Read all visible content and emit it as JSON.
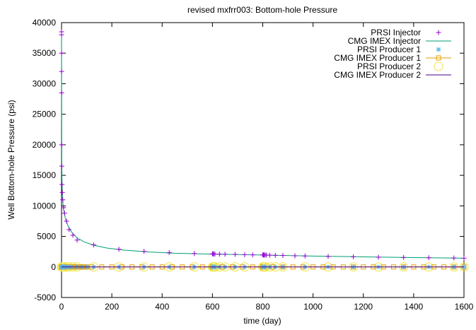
{
  "chart_data": {
    "type": "line",
    "title": "revised mxfrr003: Bottom-hole Pressure",
    "xlabel": "time (day)",
    "ylabel": "Well Bottom-hole Pressure (psi)",
    "xlim": [
      0,
      1600
    ],
    "ylim": [
      -5000,
      40000
    ],
    "xticks": [
      0,
      200,
      400,
      600,
      800,
      1000,
      1200,
      1400,
      1600
    ],
    "yticks": [
      -5000,
      0,
      5000,
      10000,
      15000,
      20000,
      25000,
      30000,
      35000,
      40000
    ],
    "grid": false,
    "legend_position": "top-right",
    "series": [
      {
        "name": "PRSI Injector",
        "style": "points",
        "marker": "plus",
        "color": "#9400d3",
        "x": [
          0.05,
          0.1,
          0.2,
          0.3,
          0.5,
          0.8,
          1,
          2,
          3,
          5,
          8,
          12,
          20,
          30,
          45,
          62,
          128,
          228,
          328,
          428,
          528,
          600,
          602,
          605,
          610,
          628,
          650,
          690,
          728,
          760,
          800,
          803,
          806,
          810,
          815,
          828,
          850,
          880,
          928,
          968,
          1060,
          1160,
          1260,
          1360,
          1460,
          1560,
          1600
        ],
        "y": [
          38500,
          38000,
          35000,
          32000,
          28500,
          20000,
          16500,
          13500,
          12200,
          11000,
          9700,
          8800,
          7500,
          6100,
          5200,
          4400,
          3600,
          2900,
          2550,
          2350,
          2200,
          2150,
          2140,
          2130,
          2120,
          2100,
          2090,
          2050,
          2000,
          1980,
          1970,
          1965,
          1960,
          1955,
          1950,
          1930,
          1900,
          1880,
          1820,
          1800,
          1720,
          1660,
          1600,
          1550,
          1500,
          1460,
          1440
        ]
      },
      {
        "name": "CMG IMEX Injector",
        "style": "line",
        "color": "#009e73",
        "x": [
          0.05,
          0.3,
          1,
          2,
          4,
          8,
          15,
          25,
          40,
          60,
          90,
          130,
          180,
          250,
          350,
          450,
          600,
          800,
          1000,
          1200,
          1400,
          1600
        ],
        "y": [
          38500,
          30000,
          17000,
          13800,
          11200,
          9500,
          8000,
          6800,
          5700,
          4800,
          4100,
          3550,
          3100,
          2750,
          2450,
          2250,
          2100,
          1950,
          1780,
          1650,
          1530,
          1430
        ]
      },
      {
        "name": "PRSI Producer 1",
        "style": "points",
        "marker": "star",
        "color": "#56b4e9",
        "x": [
          0,
          1,
          2,
          4,
          6,
          8,
          10,
          15,
          20,
          30,
          40,
          60,
          80,
          100,
          128,
          228,
          328,
          428,
          528,
          600,
          605,
          610,
          628,
          650,
          690,
          728,
          800,
          805,
          810,
          828,
          850,
          880,
          968,
          1060,
          1160,
          1260,
          1360,
          1460,
          1560,
          1600
        ],
        "y": [
          0,
          0,
          0,
          0,
          0,
          0,
          0,
          0,
          0,
          0,
          0,
          0,
          0,
          0,
          0,
          0,
          0,
          0,
          0,
          0,
          0,
          0,
          0,
          0,
          0,
          0,
          0,
          0,
          0,
          0,
          0,
          0,
          0,
          0,
          0,
          0,
          0,
          0,
          0,
          0
        ]
      },
      {
        "name": "CMG IMEX Producer 1",
        "style": "linespoints",
        "marker": "square",
        "color": "#e69f00",
        "x": [
          0,
          3,
          6,
          9,
          12,
          16,
          20,
          25,
          30,
          35,
          40,
          45,
          50,
          55,
          60,
          65,
          70,
          75,
          80,
          85,
          90,
          95,
          100,
          120,
          160,
          200,
          240,
          280,
          320,
          360,
          400,
          440,
          480,
          520,
          560,
          600,
          640,
          680,
          720,
          760,
          800,
          840,
          880,
          920,
          960,
          1000,
          1040,
          1080,
          1120,
          1160,
          1200,
          1240,
          1280,
          1320,
          1360,
          1400,
          1440,
          1480,
          1520,
          1560,
          1600
        ],
        "y": [
          0,
          0,
          0,
          0,
          0,
          0,
          0,
          0,
          0,
          0,
          0,
          0,
          0,
          0,
          0,
          0,
          0,
          0,
          0,
          0,
          0,
          0,
          0,
          0,
          0,
          0,
          0,
          0,
          0,
          0,
          0,
          0,
          0,
          0,
          0,
          0,
          0,
          0,
          0,
          0,
          0,
          0,
          0,
          0,
          0,
          0,
          0,
          0,
          0,
          0,
          0,
          0,
          0,
          0,
          0,
          0,
          0,
          0,
          0,
          0,
          0
        ]
      },
      {
        "name": "PRSI Producer 2",
        "style": "points",
        "marker": "circle",
        "color": "#f0e442",
        "x": [
          0,
          2,
          5,
          10,
          20,
          30,
          45,
          62,
          128,
          228,
          328,
          428,
          528,
          600,
          602,
          605,
          610,
          628,
          650,
          690,
          728,
          800,
          803,
          806,
          810,
          828,
          850,
          880,
          968,
          1060,
          1160,
          1260,
          1360,
          1460,
          1560,
          1600
        ],
        "y": [
          0,
          0,
          0,
          0,
          0,
          0,
          0,
          0,
          0,
          0,
          0,
          0,
          0,
          0,
          0,
          0,
          0,
          0,
          0,
          0,
          0,
          0,
          0,
          0,
          0,
          0,
          0,
          0,
          0,
          0,
          0,
          0,
          0,
          0,
          0,
          0
        ]
      },
      {
        "name": "CMG IMEX Producer 2",
        "style": "line",
        "color": "#4b0082",
        "x": [
          0,
          1600
        ],
        "y": [
          0,
          0
        ]
      }
    ]
  }
}
